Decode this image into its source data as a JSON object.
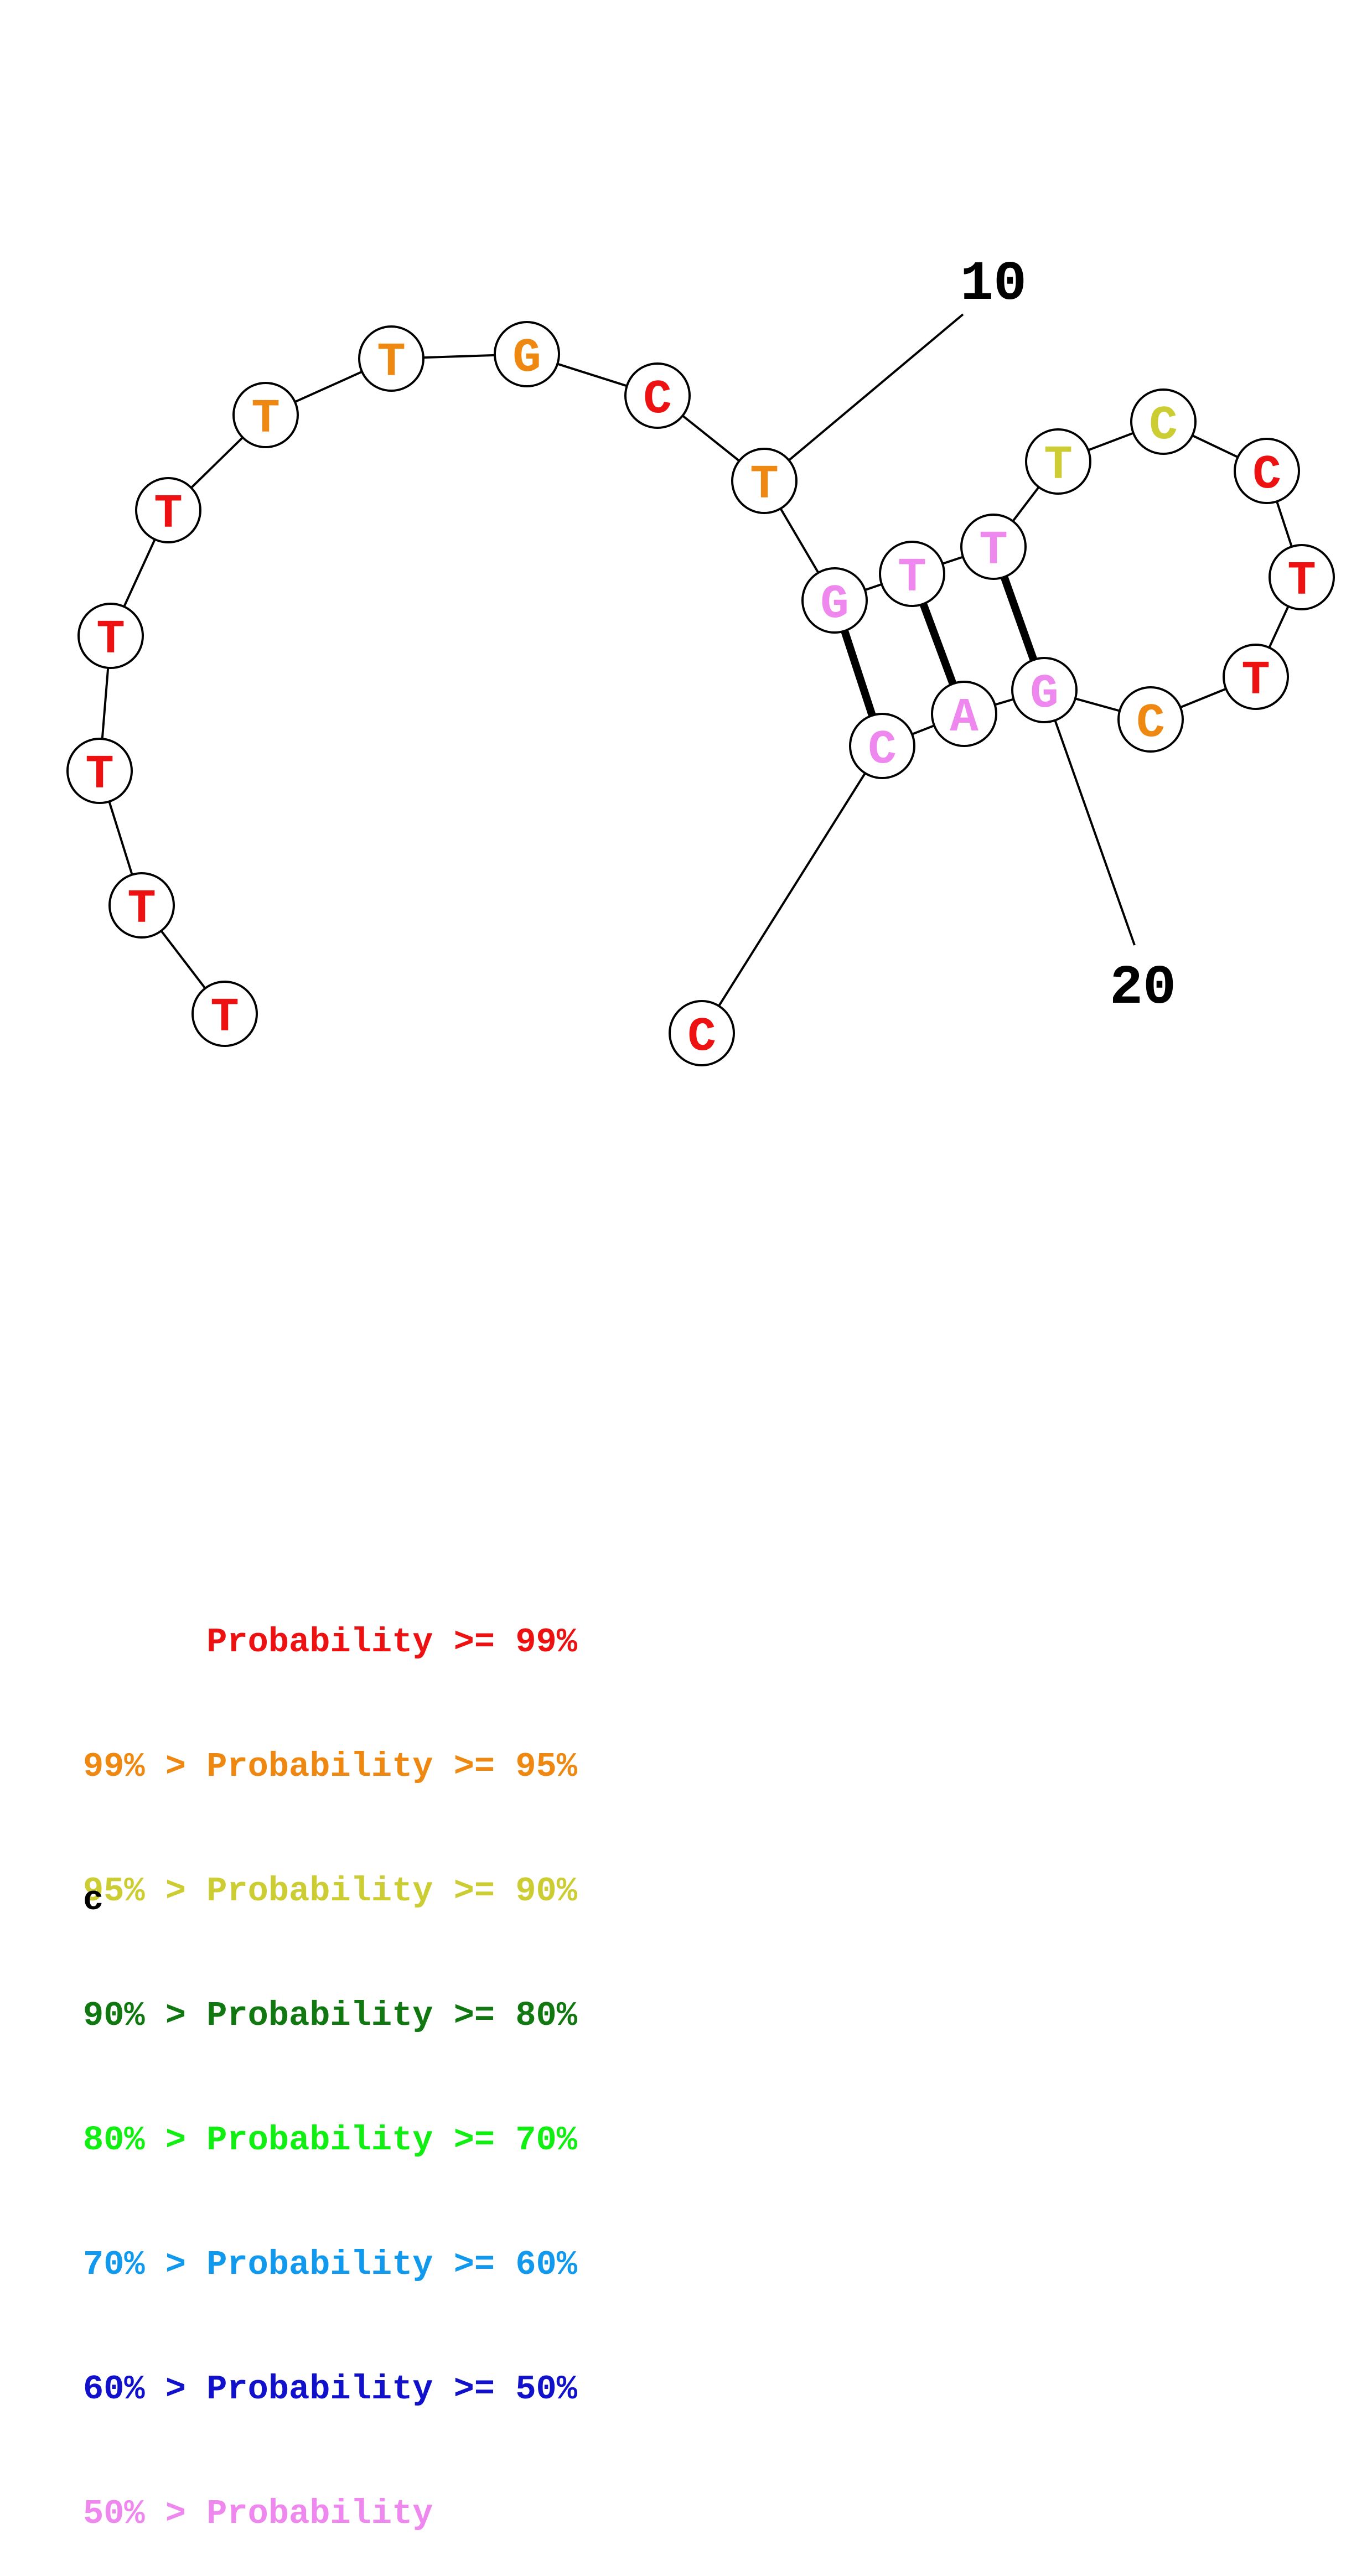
{
  "structure": {
    "nucleotides": [
      {
        "index": 1,
        "base": "T",
        "prob_class": "red"
      },
      {
        "index": 2,
        "base": "T",
        "prob_class": "red"
      },
      {
        "index": 3,
        "base": "T",
        "prob_class": "red"
      },
      {
        "index": 4,
        "base": "T",
        "prob_class": "red"
      },
      {
        "index": 5,
        "base": "T",
        "prob_class": "red"
      },
      {
        "index": 6,
        "base": "T",
        "prob_class": "orange"
      },
      {
        "index": 7,
        "base": "T",
        "prob_class": "orange"
      },
      {
        "index": 8,
        "base": "G",
        "prob_class": "orange"
      },
      {
        "index": 9,
        "base": "C",
        "prob_class": "red"
      },
      {
        "index": 10,
        "base": "T",
        "prob_class": "orange"
      },
      {
        "index": 11,
        "base": "G",
        "prob_class": "pink"
      },
      {
        "index": 12,
        "base": "T",
        "prob_class": "pink"
      },
      {
        "index": 13,
        "base": "T",
        "prob_class": "pink"
      },
      {
        "index": 14,
        "base": "T",
        "prob_class": "yellow"
      },
      {
        "index": 15,
        "base": "C",
        "prob_class": "yellow"
      },
      {
        "index": 16,
        "base": "C",
        "prob_class": "red"
      },
      {
        "index": 17,
        "base": "T",
        "prob_class": "red"
      },
      {
        "index": 18,
        "base": "T",
        "prob_class": "red"
      },
      {
        "index": 19,
        "base": "C",
        "prob_class": "orange"
      },
      {
        "index": 20,
        "base": "G",
        "prob_class": "pink"
      },
      {
        "index": 21,
        "base": "A",
        "prob_class": "pink"
      },
      {
        "index": 22,
        "base": "C",
        "prob_class": "pink"
      },
      {
        "index": 23,
        "base": "C",
        "prob_class": "red"
      }
    ],
    "base_pairs": [
      [
        11,
        22
      ],
      [
        12,
        21
      ],
      [
        13,
        20
      ]
    ],
    "position_labels": [
      {
        "text": "10",
        "at_index": 10
      },
      {
        "text": "20",
        "at_index": 20
      }
    ]
  },
  "colors": {
    "red": "#ee1111",
    "orange": "#ee8811",
    "yellow": "#cccc33",
    "dark-green": "#117711",
    "green": "#11ee11",
    "sky-blue": "#1199ee",
    "blue": "#1111cc",
    "pink": "#ee88ee"
  },
  "legend": [
    {
      "text": "      Probability >= 99%",
      "color": "red"
    },
    {
      "text": "99% > Probability >= 95%",
      "color": "orange"
    },
    {
      "text": "95% > Probability >= 90%",
      "color": "yellow"
    },
    {
      "text": "90% > Probability >= 80%",
      "color": "dark-green"
    },
    {
      "text": "80% > Probability >= 70%",
      "color": "green"
    },
    {
      "text": "70% > Probability >= 60%",
      "color": "sky-blue"
    },
    {
      "text": "60% > Probability >= 50%",
      "color": "blue"
    },
    {
      "text": "50% > Probability",
      "color": "pink"
    }
  ],
  "footer_text": "c"
}
